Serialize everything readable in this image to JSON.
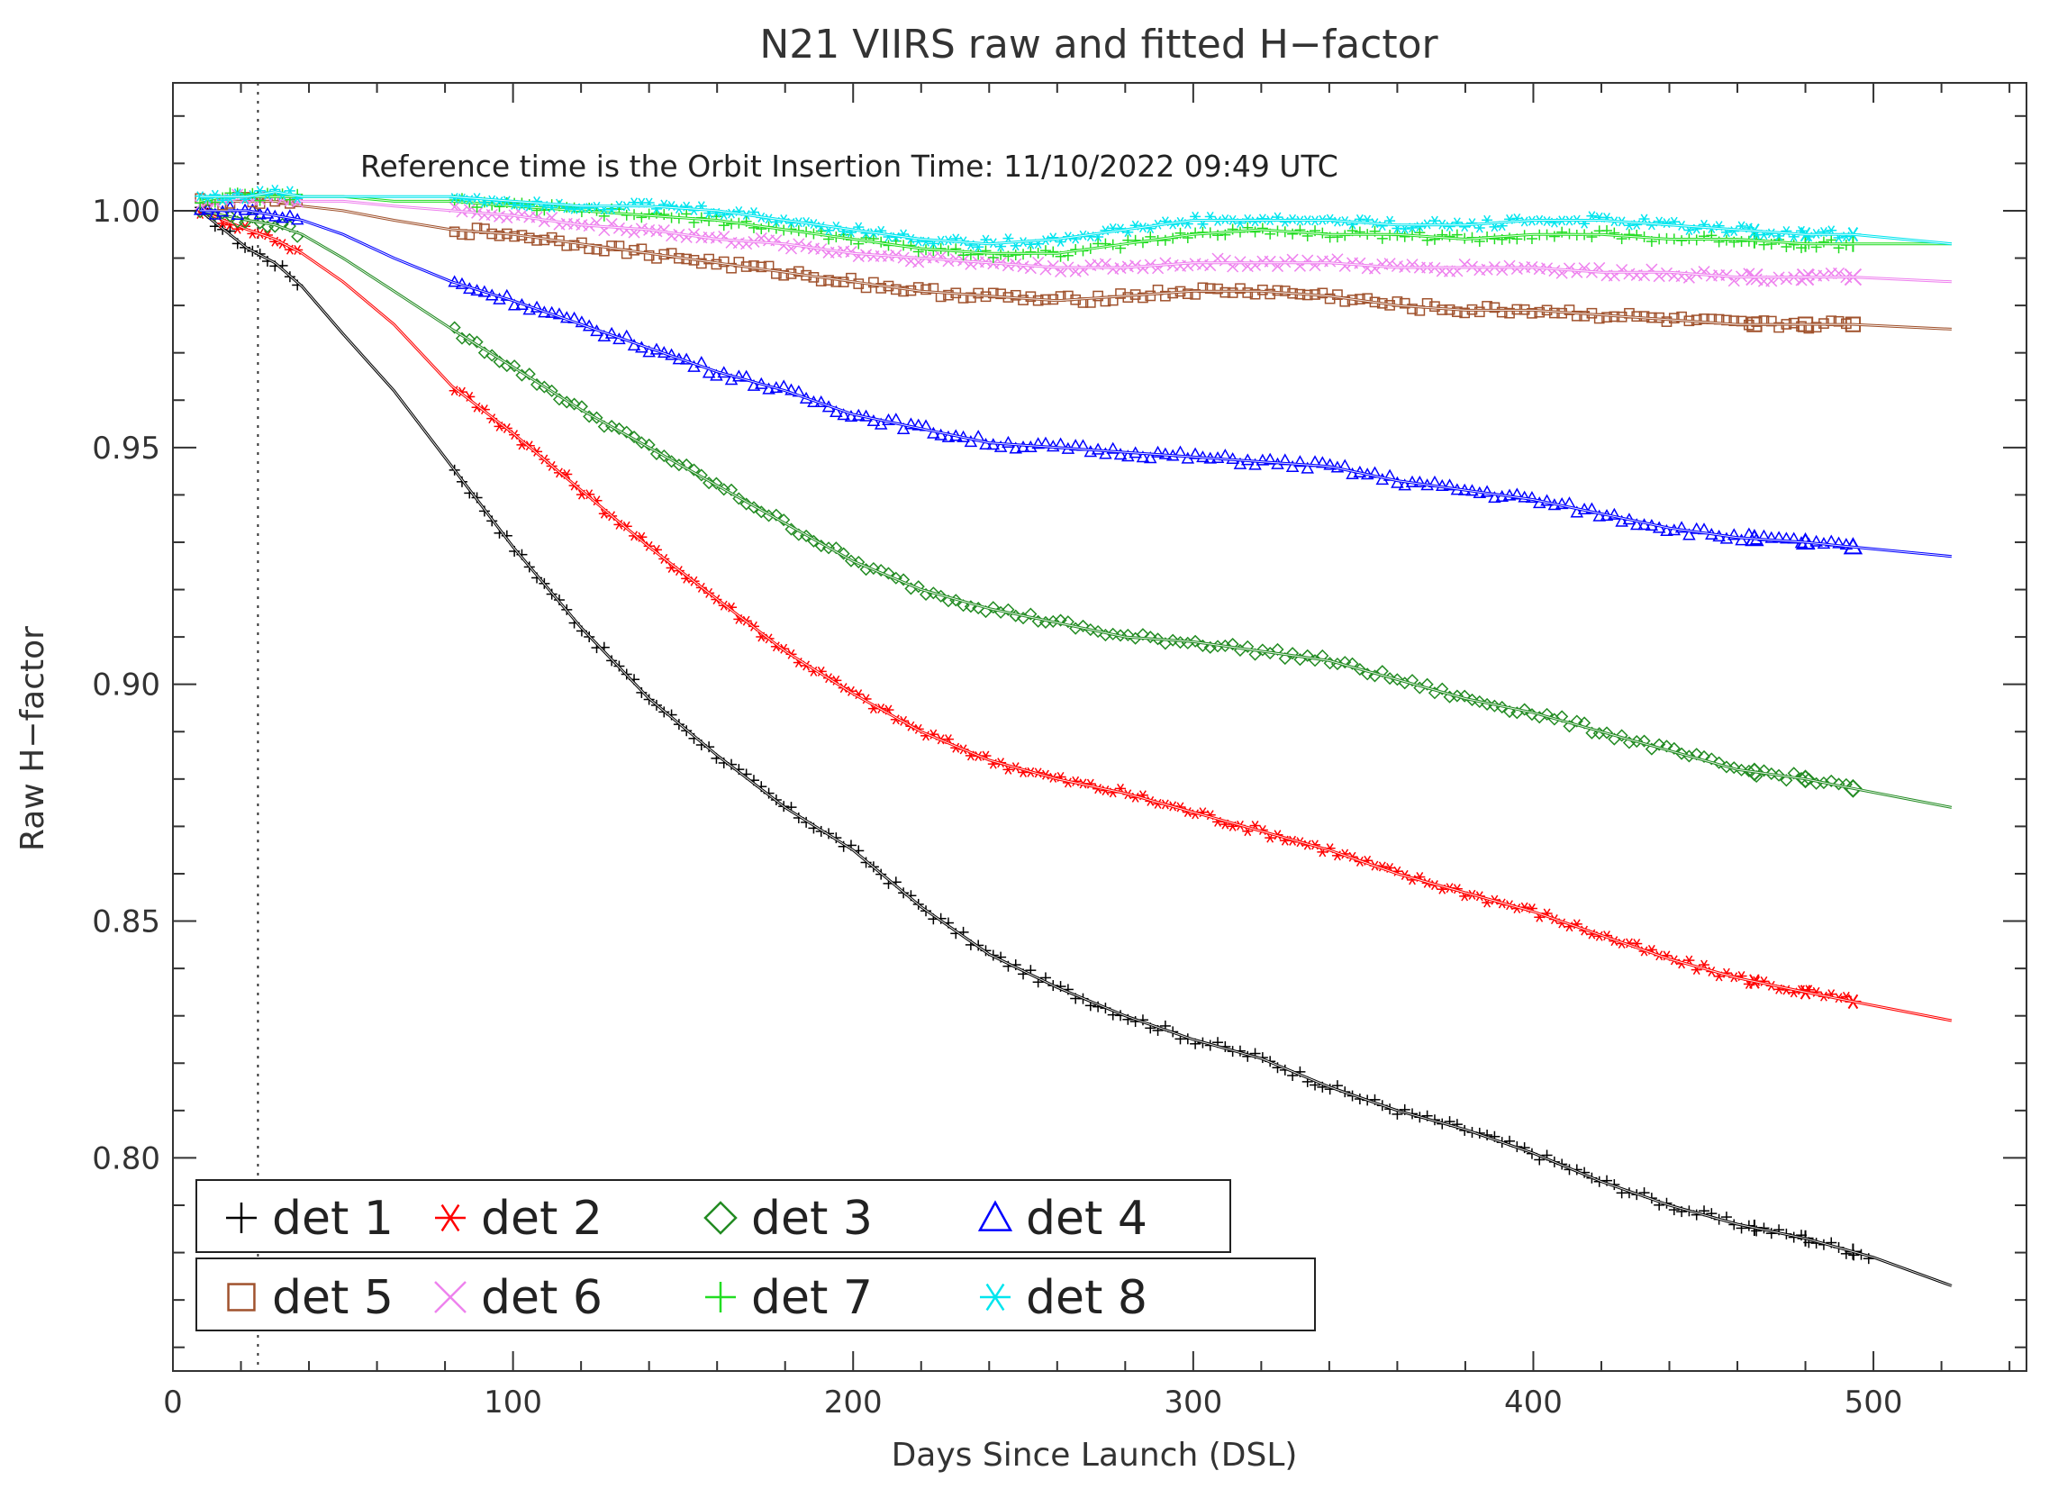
{
  "chart_data": {
    "type": "scatter",
    "title": "N21 VIIRS raw and fitted H−factor",
    "xlabel": "Days Since Launch (DSL)",
    "ylabel": "Raw H−factor",
    "annotation": "Reference time is the Orbit Insertion Time: 11/10/2022 09:49 UTC",
    "xlim": [
      0,
      545
    ],
    "ylim": [
      0.755,
      1.027
    ],
    "x_ticks": [
      0,
      100,
      200,
      300,
      400,
      500
    ],
    "x_tick_labels": [
      "0",
      "100",
      "200",
      "300",
      "400",
      "500"
    ],
    "y_ticks": [
      0.8,
      0.85,
      0.9,
      0.95,
      1.0
    ],
    "y_tick_labels": [
      "0.80",
      "0.85",
      "0.90",
      "0.95",
      "1.00"
    ],
    "reference_line_x": 25,
    "grid": false,
    "legend_position": "bottom-left",
    "series": [
      {
        "name": "det 1",
        "marker": "plus",
        "color": "#000000",
        "points": [
          [
            8,
            1.0
          ],
          [
            15,
            0.996
          ],
          [
            22,
            0.992
          ],
          [
            30,
            0.989
          ],
          [
            38,
            0.984
          ],
          [
            50,
            0.974
          ],
          [
            65,
            0.962
          ],
          [
            82,
            0.946
          ],
          [
            100,
            0.929
          ],
          [
            120,
            0.912
          ],
          [
            140,
            0.897
          ],
          [
            160,
            0.885
          ],
          [
            180,
            0.874
          ],
          [
            200,
            0.865
          ],
          [
            220,
            0.853
          ],
          [
            240,
            0.843
          ],
          [
            260,
            0.836
          ],
          [
            280,
            0.83
          ],
          [
            300,
            0.825
          ],
          [
            320,
            0.821
          ],
          [
            340,
            0.815
          ],
          [
            360,
            0.81
          ],
          [
            380,
            0.806
          ],
          [
            400,
            0.801
          ],
          [
            420,
            0.795
          ],
          [
            440,
            0.79
          ],
          [
            460,
            0.786
          ],
          [
            480,
            0.783
          ],
          [
            500,
            0.779
          ],
          [
            523,
            0.773
          ]
        ]
      },
      {
        "name": "det 2",
        "marker": "asterisk",
        "color": "#ff0000",
        "points": [
          [
            8,
            1.0
          ],
          [
            15,
            0.998
          ],
          [
            22,
            0.996
          ],
          [
            30,
            0.994
          ],
          [
            38,
            0.991
          ],
          [
            50,
            0.985
          ],
          [
            65,
            0.976
          ],
          [
            82,
            0.963
          ],
          [
            100,
            0.953
          ],
          [
            120,
            0.941
          ],
          [
            140,
            0.929
          ],
          [
            160,
            0.918
          ],
          [
            180,
            0.907
          ],
          [
            200,
            0.898
          ],
          [
            220,
            0.89
          ],
          [
            240,
            0.884
          ],
          [
            260,
            0.88
          ],
          [
            280,
            0.877
          ],
          [
            300,
            0.873
          ],
          [
            320,
            0.869
          ],
          [
            340,
            0.865
          ],
          [
            360,
            0.86
          ],
          [
            380,
            0.856
          ],
          [
            400,
            0.852
          ],
          [
            420,
            0.847
          ],
          [
            440,
            0.842
          ],
          [
            460,
            0.838
          ],
          [
            480,
            0.835
          ],
          [
            494,
            0.833
          ],
          [
            523,
            0.829
          ]
        ]
      },
      {
        "name": "det 3",
        "marker": "diamond",
        "color": "#228b22",
        "points": [
          [
            8,
            1.0
          ],
          [
            15,
            0.999
          ],
          [
            22,
            0.998
          ],
          [
            30,
            0.997
          ],
          [
            38,
            0.995
          ],
          [
            50,
            0.99
          ],
          [
            65,
            0.983
          ],
          [
            82,
            0.975
          ],
          [
            100,
            0.967
          ],
          [
            120,
            0.958
          ],
          [
            140,
            0.95
          ],
          [
            160,
            0.942
          ],
          [
            180,
            0.934
          ],
          [
            200,
            0.926
          ],
          [
            220,
            0.92
          ],
          [
            240,
            0.916
          ],
          [
            260,
            0.913
          ],
          [
            280,
            0.91
          ],
          [
            300,
            0.909
          ],
          [
            320,
            0.907
          ],
          [
            340,
            0.905
          ],
          [
            360,
            0.901
          ],
          [
            380,
            0.897
          ],
          [
            400,
            0.894
          ],
          [
            420,
            0.89
          ],
          [
            440,
            0.886
          ],
          [
            460,
            0.882
          ],
          [
            480,
            0.88
          ],
          [
            494,
            0.878
          ],
          [
            523,
            0.874
          ]
        ]
      },
      {
        "name": "det 4",
        "marker": "triangle",
        "color": "#0000ff",
        "points": [
          [
            8,
            1.0
          ],
          [
            15,
            1.0
          ],
          [
            22,
            1.0
          ],
          [
            30,
            0.999
          ],
          [
            38,
            0.998
          ],
          [
            50,
            0.995
          ],
          [
            65,
            0.99
          ],
          [
            82,
            0.985
          ],
          [
            100,
            0.981
          ],
          [
            120,
            0.976
          ],
          [
            140,
            0.971
          ],
          [
            160,
            0.966
          ],
          [
            180,
            0.962
          ],
          [
            200,
            0.957
          ],
          [
            220,
            0.954
          ],
          [
            240,
            0.951
          ],
          [
            260,
            0.95
          ],
          [
            280,
            0.949
          ],
          [
            300,
            0.948
          ],
          [
            320,
            0.947
          ],
          [
            340,
            0.946
          ],
          [
            360,
            0.943
          ],
          [
            380,
            0.941
          ],
          [
            400,
            0.939
          ],
          [
            420,
            0.936
          ],
          [
            440,
            0.933
          ],
          [
            460,
            0.931
          ],
          [
            480,
            0.93
          ],
          [
            494,
            0.929
          ],
          [
            523,
            0.927
          ]
        ]
      },
      {
        "name": "det 5",
        "marker": "square",
        "color": "#a0522d",
        "points": [
          [
            8,
            1.002
          ],
          [
            15,
            1.002
          ],
          [
            22,
            1.002
          ],
          [
            30,
            1.002
          ],
          [
            38,
            1.001
          ],
          [
            50,
            1.0
          ],
          [
            65,
            0.998
          ],
          [
            82,
            0.996
          ],
          [
            100,
            0.995
          ],
          [
            120,
            0.993
          ],
          [
            140,
            0.991
          ],
          [
            160,
            0.989
          ],
          [
            180,
            0.987
          ],
          [
            200,
            0.985
          ],
          [
            220,
            0.983
          ],
          [
            240,
            0.982
          ],
          [
            260,
            0.981
          ],
          [
            280,
            0.982
          ],
          [
            300,
            0.983
          ],
          [
            320,
            0.983
          ],
          [
            340,
            0.982
          ],
          [
            360,
            0.98
          ],
          [
            380,
            0.979
          ],
          [
            400,
            0.979
          ],
          [
            420,
            0.978
          ],
          [
            440,
            0.977
          ],
          [
            460,
            0.976
          ],
          [
            480,
            0.976
          ],
          [
            494,
            0.976
          ],
          [
            523,
            0.975
          ]
        ]
      },
      {
        "name": "det 6",
        "marker": "x",
        "color": "#ee82ee",
        "points": [
          [
            8,
            1.002
          ],
          [
            15,
            1.002
          ],
          [
            22,
            1.003
          ],
          [
            30,
            1.003
          ],
          [
            38,
            1.002
          ],
          [
            50,
            1.002
          ],
          [
            65,
            1.001
          ],
          [
            82,
            1.0
          ],
          [
            100,
            0.999
          ],
          [
            120,
            0.997
          ],
          [
            140,
            0.996
          ],
          [
            160,
            0.994
          ],
          [
            180,
            0.993
          ],
          [
            200,
            0.991
          ],
          [
            220,
            0.99
          ],
          [
            240,
            0.989
          ],
          [
            260,
            0.988
          ],
          [
            280,
            0.988
          ],
          [
            300,
            0.989
          ],
          [
            320,
            0.989
          ],
          [
            340,
            0.989
          ],
          [
            360,
            0.988
          ],
          [
            380,
            0.988
          ],
          [
            400,
            0.988
          ],
          [
            420,
            0.987
          ],
          [
            440,
            0.987
          ],
          [
            460,
            0.986
          ],
          [
            480,
            0.986
          ],
          [
            494,
            0.986
          ],
          [
            523,
            0.985
          ]
        ]
      },
      {
        "name": "det 7",
        "marker": "plus",
        "color": "#22dd22",
        "points": [
          [
            8,
            1.002
          ],
          [
            15,
            1.003
          ],
          [
            22,
            1.003
          ],
          [
            30,
            1.003
          ],
          [
            38,
            1.003
          ],
          [
            50,
            1.003
          ],
          [
            65,
            1.002
          ],
          [
            82,
            1.002
          ],
          [
            100,
            1.001
          ],
          [
            120,
            1.0
          ],
          [
            140,
            0.999
          ],
          [
            160,
            0.998
          ],
          [
            180,
            0.996
          ],
          [
            200,
            0.994
          ],
          [
            220,
            0.992
          ],
          [
            240,
            0.991
          ],
          [
            260,
            0.991
          ],
          [
            280,
            0.993
          ],
          [
            300,
            0.995
          ],
          [
            320,
            0.996
          ],
          [
            340,
            0.995
          ],
          [
            360,
            0.995
          ],
          [
            380,
            0.994
          ],
          [
            400,
            0.995
          ],
          [
            420,
            0.995
          ],
          [
            440,
            0.994
          ],
          [
            460,
            0.994
          ],
          [
            480,
            0.993
          ],
          [
            494,
            0.993
          ],
          [
            523,
            0.993
          ]
        ]
      },
      {
        "name": "det 8",
        "marker": "asterisk",
        "color": "#00e5ee",
        "points": [
          [
            8,
            1.003
          ],
          [
            15,
            1.003
          ],
          [
            22,
            1.003
          ],
          [
            30,
            1.004
          ],
          [
            38,
            1.003
          ],
          [
            50,
            1.003
          ],
          [
            65,
            1.003
          ],
          [
            82,
            1.003
          ],
          [
            100,
            1.002
          ],
          [
            120,
            1.001
          ],
          [
            140,
            1.001
          ],
          [
            160,
            1.0
          ],
          [
            180,
            0.998
          ],
          [
            200,
            0.996
          ],
          [
            220,
            0.994
          ],
          [
            240,
            0.993
          ],
          [
            260,
            0.994
          ],
          [
            280,
            0.996
          ],
          [
            300,
            0.998
          ],
          [
            320,
            0.998
          ],
          [
            340,
            0.998
          ],
          [
            360,
            0.997
          ],
          [
            380,
            0.997
          ],
          [
            400,
            0.998
          ],
          [
            420,
            0.998
          ],
          [
            440,
            0.997
          ],
          [
            460,
            0.996
          ],
          [
            480,
            0.995
          ],
          [
            494,
            0.995
          ],
          [
            523,
            0.993
          ]
        ]
      }
    ]
  }
}
